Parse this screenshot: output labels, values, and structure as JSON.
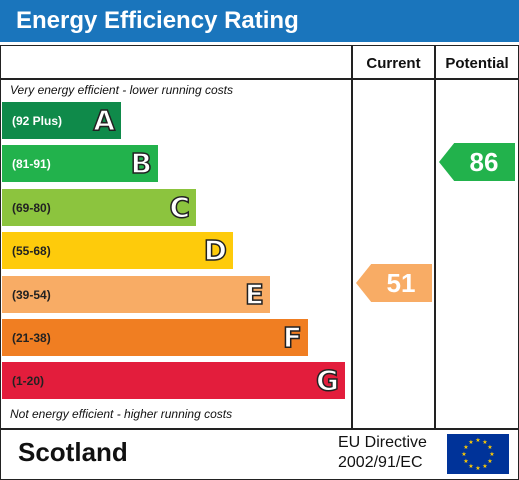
{
  "header": {
    "title": "Energy Efficiency Rating"
  },
  "columns": {
    "current": "Current",
    "potential": "Potential"
  },
  "notes": {
    "top": "Very energy efficient - lower running costs",
    "bottom": "Not energy efficient - higher running costs"
  },
  "bands": [
    {
      "range": "(92 Plus)",
      "letter": "A",
      "color": "#0f8a4a"
    },
    {
      "range": "(81-91)",
      "letter": "B",
      "color": "#22b24c"
    },
    {
      "range": "(69-80)",
      "letter": "C",
      "color": "#8cc43e"
    },
    {
      "range": "(55-68)",
      "letter": "D",
      "color": "#fecb0b"
    },
    {
      "range": "(39-54)",
      "letter": "E",
      "color": "#f8ac65"
    },
    {
      "range": "(21-38)",
      "letter": "F",
      "color": "#f07e22"
    },
    {
      "range": "(1-20)",
      "letter": "G",
      "color": "#e31d3c"
    }
  ],
  "ratings": {
    "current": {
      "value": "51",
      "color": "#f8ac65"
    },
    "potential": {
      "value": "86",
      "color": "#22b24c"
    }
  },
  "footer": {
    "region": "Scotland",
    "directive_line1": "EU Directive",
    "directive_line2": "2002/91/EC"
  }
}
